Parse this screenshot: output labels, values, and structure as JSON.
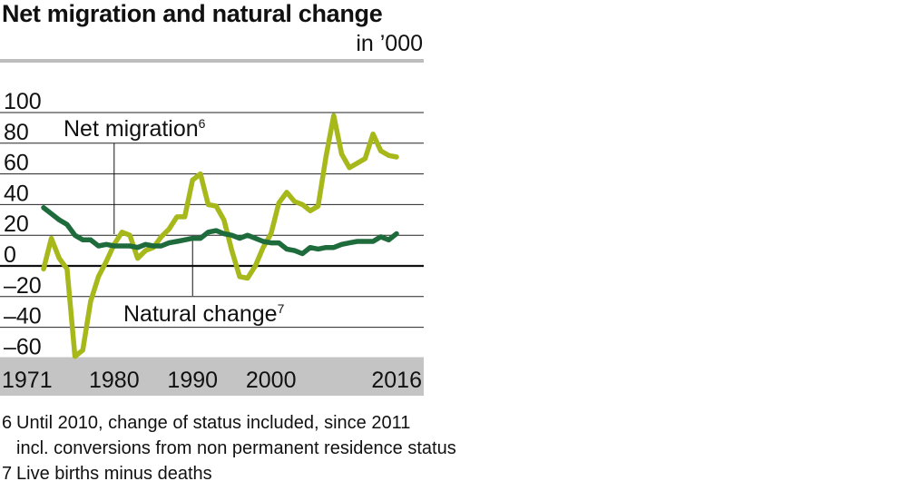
{
  "title": "Net migration and natural change",
  "unit": "in ’000",
  "chart_data": {
    "type": "line",
    "ylim": [
      -80,
      100
    ],
    "yticks": [
      100,
      80,
      60,
      40,
      20,
      0,
      -20,
      -40,
      -60
    ],
    "ytick_labels": [
      "100",
      "80",
      "60",
      "40",
      "20",
      "0",
      "–20",
      "–40",
      "–60"
    ],
    "xlim": [
      1971,
      2016
    ],
    "xtick_labels": [
      {
        "x": 1971,
        "label": "1971"
      },
      {
        "x": 1980,
        "label": "1980"
      },
      {
        "x": 1990,
        "label": "1990"
      },
      {
        "x": 2000,
        "label": "2000"
      },
      {
        "x": 2016,
        "label": "2016"
      }
    ],
    "grid": true,
    "series": [
      {
        "name": "Net migration",
        "color": "#a6b81a",
        "annotation_label": "Net migration",
        "annotation_sup": "6",
        "annotation_year": 1980,
        "x": [
          1971,
          1972,
          1973,
          1974,
          1975,
          1976,
          1977,
          1978,
          1979,
          1980,
          1981,
          1982,
          1983,
          1984,
          1985,
          1986,
          1987,
          1988,
          1989,
          1990,
          1991,
          1992,
          1993,
          1994,
          1995,
          1996,
          1997,
          1998,
          1999,
          2000,
          2001,
          2002,
          2003,
          2004,
          2005,
          2006,
          2007,
          2008,
          2009,
          2010,
          2011,
          2012,
          2013,
          2014,
          2015,
          2016
        ],
        "y": [
          -2,
          18,
          5,
          -2,
          -59,
          -55,
          -23,
          -7,
          3,
          14,
          22,
          20,
          5,
          10,
          12,
          19,
          24,
          32,
          32,
          56,
          60,
          40,
          39,
          30,
          10,
          -7,
          -8,
          0,
          12,
          21,
          41,
          48,
          42,
          40,
          36,
          39,
          71,
          98,
          73,
          64,
          67,
          70,
          86,
          75,
          72,
          71
        ]
      },
      {
        "name": "Natural change",
        "color": "#1e6b3c",
        "annotation_label": "Natural change",
        "annotation_sup": "7",
        "annotation_year": 1990,
        "x": [
          1971,
          1972,
          1973,
          1974,
          1975,
          1976,
          1977,
          1978,
          1979,
          1980,
          1981,
          1982,
          1983,
          1984,
          1985,
          1986,
          1987,
          1988,
          1989,
          1990,
          1991,
          1992,
          1993,
          1994,
          1995,
          1996,
          1997,
          1998,
          1999,
          2000,
          2001,
          2002,
          2003,
          2004,
          2005,
          2006,
          2007,
          2008,
          2009,
          2010,
          2011,
          2012,
          2013,
          2014,
          2015,
          2016
        ],
        "y": [
          38,
          34,
          30,
          27,
          20,
          17,
          17,
          13,
          14,
          13,
          13,
          13,
          12,
          14,
          13,
          13,
          15,
          16,
          17,
          18,
          18,
          22,
          23,
          21,
          20,
          18,
          20,
          18,
          16,
          15,
          15,
          11,
          10,
          8,
          12,
          11,
          12,
          12,
          14,
          15,
          16,
          16,
          16,
          19,
          17,
          21
        ]
      }
    ]
  },
  "footnotes": [
    {
      "num": "6",
      "text": "Until 2010, change of status included, since 2011"
    },
    {
      "num": "",
      "text": "incl. conversions from non permanent residence status"
    },
    {
      "num": "7",
      "text": "Live births minus deaths"
    }
  ]
}
